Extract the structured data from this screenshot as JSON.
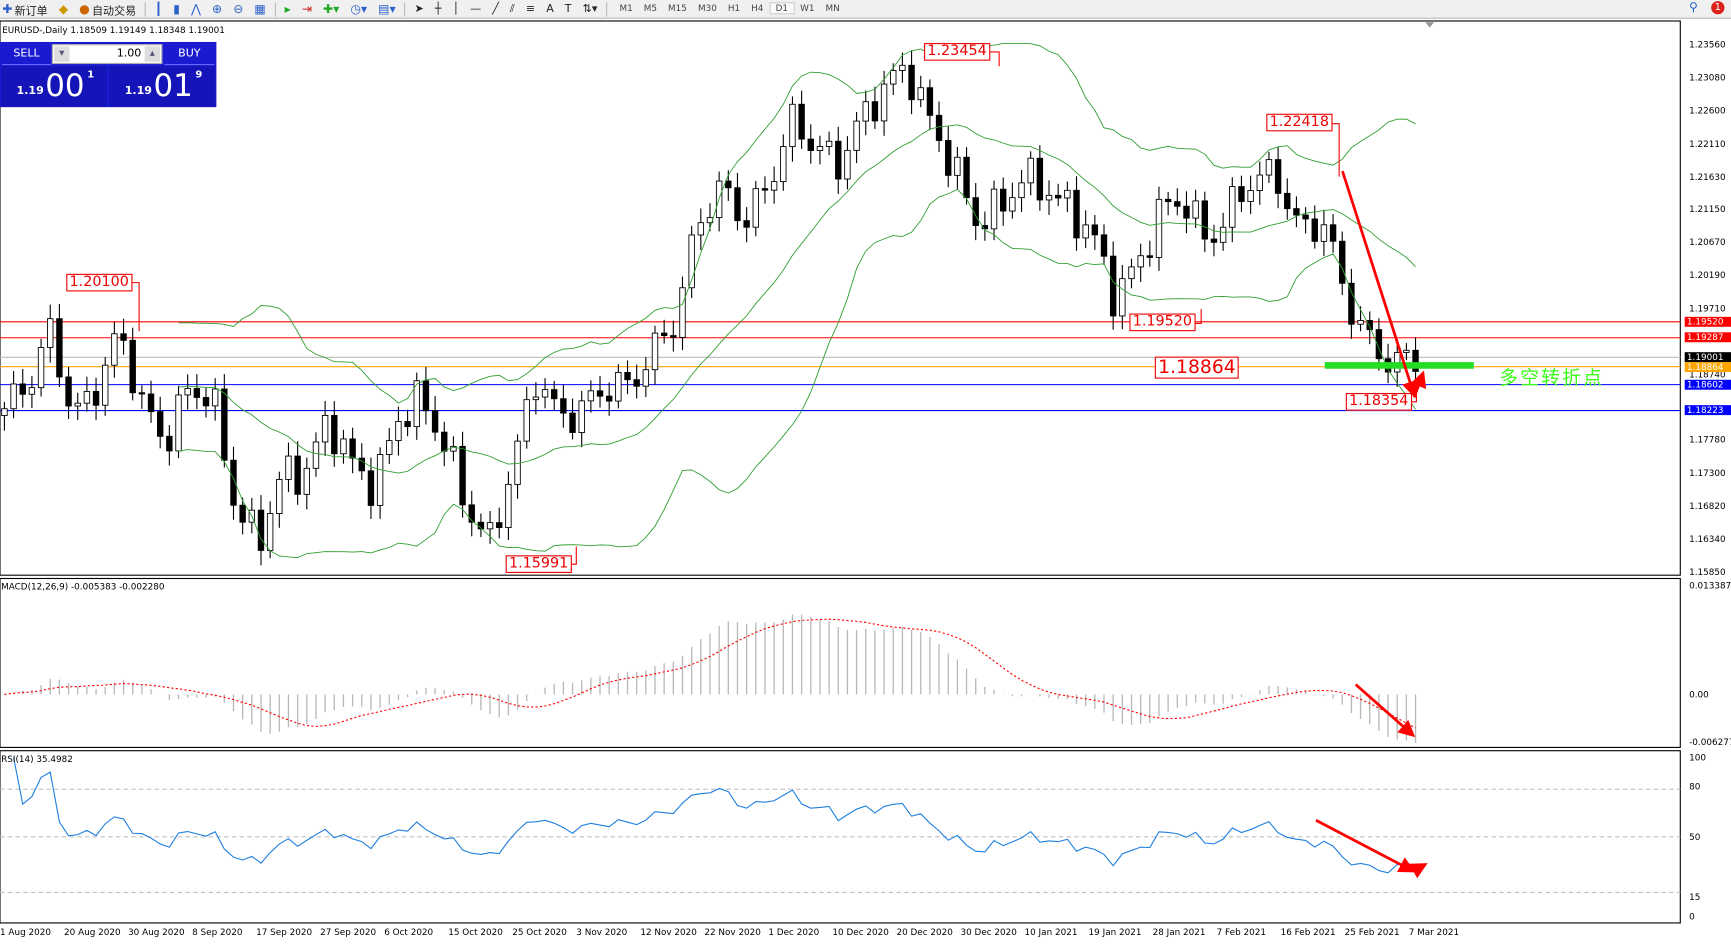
{
  "toolbar": {
    "new_order": "新订单",
    "auto_trading": "自动交易",
    "timeframes": [
      "M1",
      "M5",
      "M15",
      "M30",
      "H1",
      "H4",
      "D1",
      "W1",
      "MN"
    ],
    "active_timeframe": "D1",
    "notification_count": "1"
  },
  "chart": {
    "title": "EURUSD-,Daily  1.18509 1.19149 1.18348 1.19001",
    "price_labels": [
      "1.23560",
      "1.23080",
      "1.22600",
      "1.22110",
      "1.21630",
      "1.21150",
      "1.20670",
      "1.20190",
      "1.19710",
      "1.18740",
      "1.17780",
      "1.17300",
      "1.16820",
      "1.16340",
      "1.15850"
    ],
    "price_tags": [
      {
        "value": "1.19520",
        "color": "#ff0000"
      },
      {
        "value": "1.19287",
        "color": "#ff0000"
      },
      {
        "value": "1.19001",
        "color": "#000000"
      },
      {
        "value": "1.18864",
        "color": "#ffa500"
      },
      {
        "value": "1.18602",
        "color": "#0000ff"
      },
      {
        "value": "1.18223",
        "color": "#0000ff"
      }
    ],
    "annotations": [
      "1.23454",
      "1.22418",
      "1.20100",
      "1.19520",
      "1.18864",
      "1.18354",
      "1.15991"
    ],
    "green_label": "多空转折点",
    "dates": [
      "1 Aug 2020",
      "20 Aug 2020",
      "30 Aug 2020",
      "8 Sep 2020",
      "17 Sep 2020",
      "27 Sep 2020",
      "6 Oct 2020",
      "15 Oct 2020",
      "25 Oct 2020",
      "3 Nov 2020",
      "12 Nov 2020",
      "22 Nov 2020",
      "1 Dec 2020",
      "10 Dec 2020",
      "20 Dec 2020",
      "30 Dec 2020",
      "10 Jan 2021",
      "19 Jan 2021",
      "28 Jan 2021",
      "7 Feb 2021",
      "16 Feb 2021",
      "25 Feb 2021",
      "7 Mar 2021"
    ],
    "approx_closes": [
      1.1825,
      1.186,
      1.1938,
      1.181,
      1.1858,
      1.1938,
      1.1825,
      1.1777,
      1.1858,
      1.184,
      1.168,
      1.163,
      1.173,
      1.173,
      1.181,
      1.1745,
      1.171,
      1.181,
      1.184,
      1.1777,
      1.168,
      1.163,
      1.1745,
      1.1874,
      1.181,
      1.1825,
      1.1858,
      1.1858,
      1.1906,
      1.1954,
      1.21,
      1.2148,
      1.21,
      1.2148,
      1.2245,
      1.2212,
      1.218,
      1.2245,
      1.2293,
      1.2325,
      1.2245,
      1.218,
      1.21,
      1.2116,
      1.2164,
      1.2148,
      1.2116,
      1.2083,
      1.1987,
      1.2035,
      1.2116,
      1.2132,
      1.2067,
      1.2116,
      1.2164,
      1.2164,
      1.2083,
      1.21,
      1.1987,
      1.1922,
      1.189,
      1.19
    ],
    "colors": {
      "bollinger": "#2e9e2e",
      "macd_signal": "#ff0000",
      "rsi": "#1e7fe0",
      "arrow": "#ff0000",
      "turn_bar": "#22dd22"
    }
  },
  "trade_panel": {
    "sell_label": "SELL",
    "buy_label": "BUY",
    "lot": "1.00",
    "sell_prefix": "1.19",
    "sell_big": "00",
    "sell_sup": "1",
    "buy_prefix": "1.19",
    "buy_big": "01",
    "buy_sup": "9"
  },
  "macd": {
    "title": "MACD(12,26,9) -0.005383 -0.002280",
    "labels": [
      "0.013387",
      "0.00",
      "-0.006277"
    ]
  },
  "rsi": {
    "title": "RSI(14) 35.4982",
    "labels": [
      "100",
      "80",
      "50",
      "15",
      "0"
    ]
  }
}
